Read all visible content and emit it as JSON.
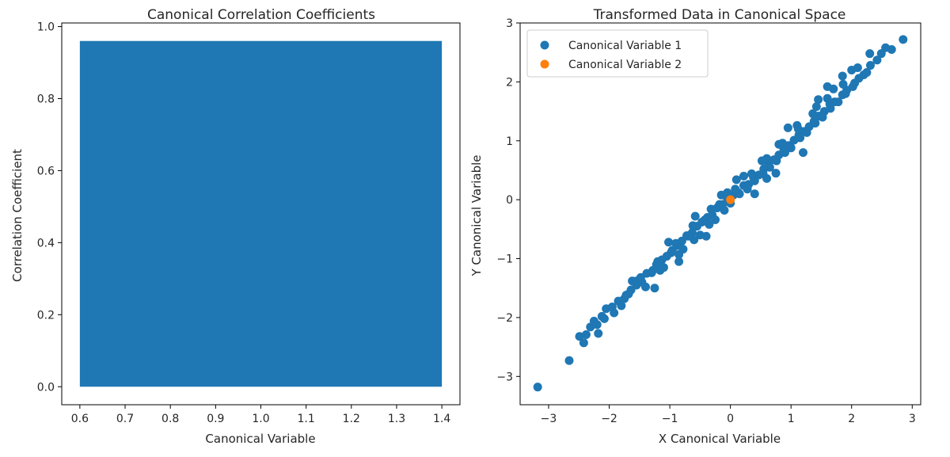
{
  "chart_data": [
    {
      "type": "bar",
      "title": "Canonical Correlation Coefficients",
      "xlabel": "Canonical Variable",
      "ylabel": "Correlation Coefficient",
      "categories": [
        1
      ],
      "values": [
        0.96
      ],
      "bar_width": 0.8,
      "xlim": [
        0.56,
        1.44
      ],
      "ylim": [
        -0.05,
        1.01
      ],
      "xticks": [
        0.6,
        0.7,
        0.8,
        0.9,
        1.0,
        1.1,
        1.2,
        1.3,
        1.4
      ],
      "xtick_labels": [
        "0.6",
        "0.7",
        "0.8",
        "0.9",
        "1.0",
        "1.1",
        "1.2",
        "1.3",
        "1.4"
      ],
      "yticks": [
        0.0,
        0.2,
        0.4,
        0.6,
        0.8,
        1.0
      ],
      "ytick_labels": [
        "0.0",
        "0.2",
        "0.4",
        "0.6",
        "0.8",
        "1.0"
      ],
      "color": "#1f77b4",
      "grid": false
    },
    {
      "type": "scatter",
      "title": "Transformed Data in Canonical Space",
      "xlabel": "X Canonical Variable",
      "ylabel": "Y Canonical Variable",
      "xlim": [
        -3.47,
        3.14
      ],
      "ylim": [
        -3.48,
        3.0
      ],
      "xticks": [
        -3,
        -2,
        -1,
        0,
        1,
        2,
        3
      ],
      "xtick_labels": [
        "−3",
        "−2",
        "−1",
        "0",
        "1",
        "2",
        "3"
      ],
      "yticks": [
        -3,
        -2,
        -1,
        0,
        1,
        2,
        3
      ],
      "ytick_labels": [
        "−3",
        "−2",
        "−1",
        "0",
        "1",
        "2",
        "3"
      ],
      "legend_position": "top-left",
      "grid": false,
      "series": [
        {
          "name": "Canonical Variable 1",
          "color": "#1f77b4",
          "points": [
            [
              -3.18,
              -3.18
            ],
            [
              -2.66,
              -2.73
            ],
            [
              -2.49,
              -2.32
            ],
            [
              -2.42,
              -2.43
            ],
            [
              -2.31,
              -2.16
            ],
            [
              -2.25,
              -2.06
            ],
            [
              -2.12,
              -1.98
            ],
            [
              -2.05,
              -1.85
            ],
            [
              -1.92,
              -1.92
            ],
            [
              -1.85,
              -1.72
            ],
            [
              -1.72,
              -1.62
            ],
            [
              -1.64,
              -1.53
            ],
            [
              -1.55,
              -1.38
            ],
            [
              -1.46,
              -1.4
            ],
            [
              -1.38,
              -1.25
            ],
            [
              -1.3,
              -1.24
            ],
            [
              -1.22,
              -1.1
            ],
            [
              -1.13,
              -1.02
            ],
            [
              -1.05,
              -0.96
            ],
            [
              -0.96,
              -0.86
            ],
            [
              -0.88,
              -0.78
            ],
            [
              -0.8,
              -0.7
            ],
            [
              -0.72,
              -0.61
            ],
            [
              -0.63,
              -0.56
            ],
            [
              -0.55,
              -0.45
            ],
            [
              -0.47,
              -0.38
            ],
            [
              -0.38,
              -0.3
            ],
            [
              -0.3,
              -0.26
            ],
            [
              -0.22,
              -0.14
            ],
            [
              -0.13,
              -0.08
            ],
            [
              -0.05,
              0.02
            ],
            [
              0.05,
              0.08
            ],
            [
              0.13,
              0.12
            ],
            [
              0.22,
              0.24
            ],
            [
              0.3,
              0.26
            ],
            [
              0.38,
              0.38
            ],
            [
              0.47,
              0.42
            ],
            [
              0.55,
              0.52
            ],
            [
              0.63,
              0.62
            ],
            [
              0.72,
              0.68
            ],
            [
              0.8,
              0.76
            ],
            [
              0.88,
              0.86
            ],
            [
              0.96,
              0.92
            ],
            [
              1.05,
              1.01
            ],
            [
              1.13,
              1.1
            ],
            [
              1.22,
              1.16
            ],
            [
              1.3,
              1.24
            ],
            [
              1.38,
              1.33
            ],
            [
              1.46,
              1.42
            ],
            [
              1.55,
              1.5
            ],
            [
              1.64,
              1.62
            ],
            [
              1.72,
              1.66
            ],
            [
              1.85,
              1.78
            ],
            [
              1.92,
              1.86
            ],
            [
              2.05,
              1.98
            ],
            [
              2.12,
              2.06
            ],
            [
              2.25,
              2.16
            ],
            [
              2.31,
              2.28
            ],
            [
              2.42,
              2.37
            ],
            [
              2.49,
              2.48
            ],
            [
              2.56,
              2.58
            ],
            [
              2.66,
              2.55
            ],
            [
              2.85,
              2.72
            ],
            [
              -2.38,
              -2.29
            ],
            [
              -2.18,
              -2.27
            ],
            [
              -1.8,
              -1.8
            ],
            [
              -1.4,
              -1.48
            ],
            [
              -1.1,
              -1.15
            ],
            [
              -0.85,
              -0.93
            ],
            [
              -0.6,
              -0.68
            ],
            [
              -0.35,
              -0.42
            ],
            [
              -0.1,
              -0.18
            ],
            [
              0.15,
              0.1
            ],
            [
              0.4,
              0.32
            ],
            [
              0.65,
              0.55
            ],
            [
              0.9,
              0.8
            ],
            [
              1.15,
              1.05
            ],
            [
              1.4,
              1.3
            ],
            [
              1.65,
              1.55
            ],
            [
              1.9,
              1.8
            ],
            [
              2.2,
              2.12
            ],
            [
              -1.95,
              -1.82
            ],
            [
              -1.55,
              -1.45
            ],
            [
              -1.2,
              -1.05
            ],
            [
              -0.9,
              -0.74
            ],
            [
              -0.62,
              -0.44
            ],
            [
              -0.32,
              -0.16
            ],
            [
              -0.05,
              0.12
            ],
            [
              0.22,
              0.4
            ],
            [
              0.52,
              0.66
            ],
            [
              0.8,
              0.94
            ],
            [
              1.1,
              1.26
            ],
            [
              1.42,
              1.58
            ],
            [
              1.7,
              1.88
            ],
            [
              2.0,
              2.2
            ],
            [
              2.3,
              2.48
            ],
            [
              -2.08,
              -2.02
            ],
            [
              -1.68,
              -1.6
            ],
            [
              -1.28,
              -1.2
            ],
            [
              -0.98,
              -0.9
            ],
            [
              -0.7,
              -0.62
            ],
            [
              -0.42,
              -0.34
            ],
            [
              -0.18,
              -0.08
            ],
            [
              0.08,
              0.18
            ],
            [
              0.35,
              0.44
            ],
            [
              0.6,
              0.7
            ],
            [
              0.86,
              0.96
            ],
            [
              1.12,
              1.2
            ],
            [
              1.36,
              1.46
            ],
            [
              1.6,
              1.72
            ],
            [
              1.86,
              1.96
            ],
            [
              2.1,
              2.24
            ],
            [
              -2.2,
              -2.12
            ],
            [
              -1.75,
              -1.68
            ],
            [
              -1.48,
              -1.32
            ],
            [
              -1.16,
              -1.2
            ],
            [
              -0.78,
              -0.84
            ],
            [
              -0.5,
              -0.6
            ],
            [
              -0.25,
              -0.34
            ],
            [
              0.0,
              -0.06
            ],
            [
              0.28,
              0.18
            ],
            [
              0.54,
              0.44
            ],
            [
              0.76,
              0.66
            ],
            [
              1.0,
              0.88
            ],
            [
              1.26,
              1.14
            ],
            [
              1.52,
              1.4
            ],
            [
              1.78,
              1.66
            ],
            [
              2.02,
              1.92
            ],
            [
              1.2,
              0.8
            ],
            [
              0.6,
              0.36
            ],
            [
              -0.58,
              -0.28
            ],
            [
              -1.02,
              -0.72
            ],
            [
              1.6,
              1.92
            ],
            [
              -1.25,
              -1.5
            ],
            [
              0.1,
              0.34
            ],
            [
              0.4,
              0.1
            ],
            [
              -0.4,
              -0.62
            ],
            [
              0.95,
              1.22
            ],
            [
              1.85,
              2.1
            ],
            [
              -1.62,
              -1.38
            ],
            [
              0.75,
              0.45
            ],
            [
              -0.85,
              -1.05
            ],
            [
              1.45,
              1.7
            ],
            [
              -0.15,
              0.08
            ]
          ]
        },
        {
          "name": "Canonical Variable 2",
          "color": "#ff7f0e",
          "points": [
            [
              0.0,
              0.0
            ]
          ]
        }
      ]
    }
  ]
}
